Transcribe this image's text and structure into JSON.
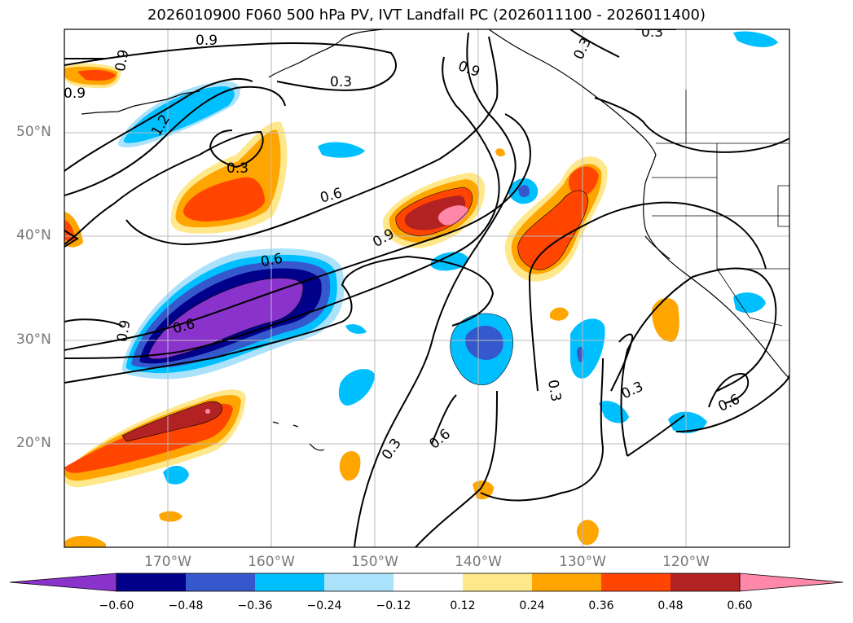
{
  "title": "2026010900 F060 500 hPa PV, IVT Landfall PC (2026011100 - 2026011400)",
  "lat_labels": [
    "50°N",
    "40°N",
    "30°N",
    "20°N"
  ],
  "lon_labels": [
    "170°W",
    "160°W",
    "150°W",
    "140°W",
    "130°W",
    "120°W"
  ],
  "contour_labels": [
    "0.9",
    "0.9",
    "0.9",
    "0.3",
    "0.3",
    "0.3",
    "0.3",
    "0.6",
    "0.9",
    "0.9",
    "0.9",
    "0.6",
    "0.3",
    "0.6",
    "0.3",
    "0.3",
    "0.6",
    "1.2",
    "0.6"
  ],
  "colorbar": {
    "ticks": [
      "−0.60",
      "−0.48",
      "−0.36",
      "−0.24",
      "−0.12",
      "0.12",
      "0.24",
      "0.36",
      "0.48",
      "0.60"
    ],
    "colors": [
      "#8a33cc",
      "#00008b",
      "#3558cc",
      "#00bfff",
      "#abe2fb",
      "#ffffff",
      "#ffe88c",
      "#ffa500",
      "#ff4500",
      "#b22222",
      "#ff88aa"
    ]
  }
}
